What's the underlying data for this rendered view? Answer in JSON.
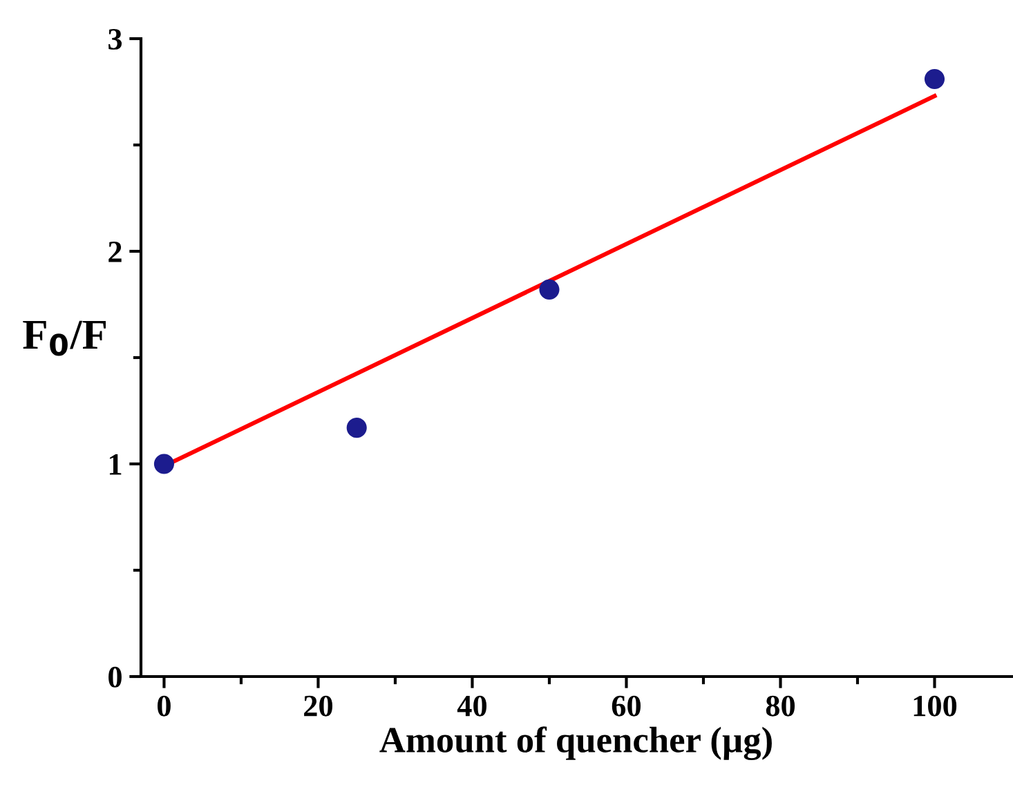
{
  "chart_data": {
    "type": "scatter",
    "xlabel": "Amount of quencher (µg)",
    "ylabel": "F$_{0}$/F",
    "series": [
      {
        "color": "#1c1c8e",
        "x": [
          0,
          25,
          50,
          100
        ],
        "values": [
          1.0,
          1.17,
          1.82,
          2.81
        ],
        "marker": "circle"
      },
      {
        "type": "line",
        "color": "#ff0000",
        "x": [
          0,
          100
        ],
        "values": [
          0.99,
          2.73
        ],
        "line_style": "solid"
      }
    ],
    "xlim": [
      -3,
      110
    ],
    "ylim": [
      0,
      3
    ],
    "xticks": [
      0,
      20,
      40,
      60,
      80,
      100
    ],
    "yticks": [
      0,
      1,
      2,
      3
    ],
    "grid": false,
    "legend": false
  }
}
